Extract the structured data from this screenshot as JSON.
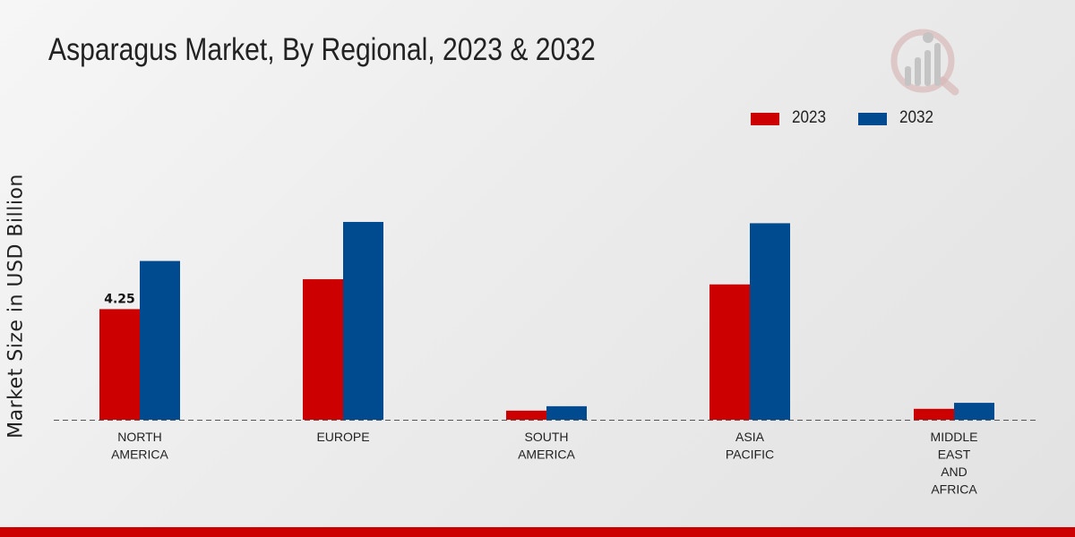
{
  "colors": {
    "series_2023": "#cc0000",
    "series_2032": "#004a8f",
    "bottom_bar": "#cc0000"
  },
  "chart_data": {
    "type": "bar",
    "title": "Asparagus Market, By Regional, 2023 & 2032",
    "ylabel": "Market Size in USD Billion",
    "xlabel": "",
    "categories": [
      [
        "NORTH",
        "AMERICA"
      ],
      [
        "EUROPE"
      ],
      [
        "SOUTH",
        "AMERICA"
      ],
      [
        "ASIA",
        "PACIFIC"
      ],
      [
        "MIDDLE",
        "EAST",
        "AND",
        "AFRICA"
      ]
    ],
    "series": [
      {
        "name": "2023",
        "values": [
          4.25,
          5.4,
          0.35,
          5.2,
          0.42
        ]
      },
      {
        "name": "2032",
        "values": [
          6.1,
          7.6,
          0.52,
          7.55,
          0.65
        ]
      }
    ],
    "data_labels": [
      {
        "series": 0,
        "index": 0,
        "text": "4.25"
      }
    ],
    "ylim": [
      0,
      12
    ],
    "legend_position": "top-right",
    "grid": false
  }
}
